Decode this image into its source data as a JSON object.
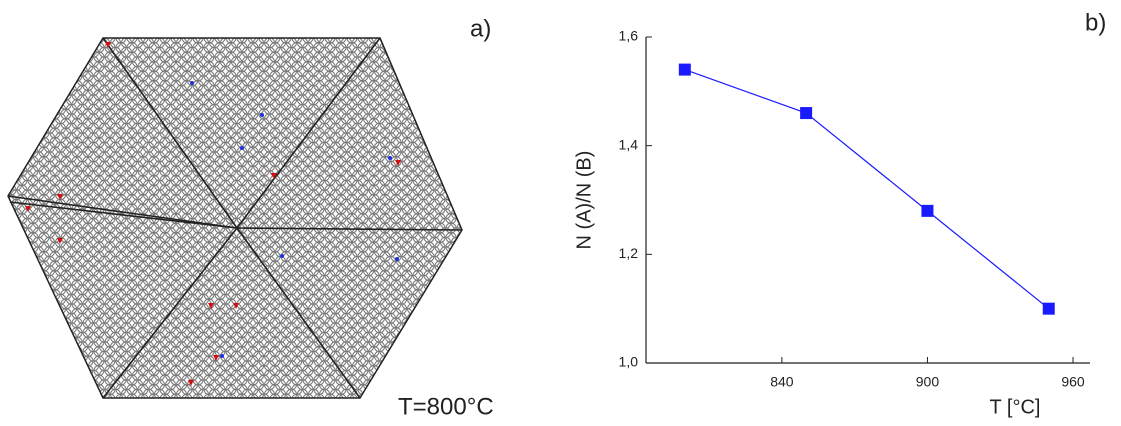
{
  "panel_a": {
    "label": "a)",
    "annotation": "T=800°C"
  },
  "chart_data": {
    "type": "line",
    "panel_label": "b)",
    "x_label": "T [°C]",
    "y_label": "N (A)/N (B)",
    "x": [
      800,
      850,
      900,
      950
    ],
    "series": [
      {
        "values": [
          1.54,
          1.46,
          1.28,
          1.1
        ],
        "color": "#1a1aff"
      }
    ],
    "xlim": [
      784,
      967
    ],
    "xticks": [
      840,
      900,
      960
    ],
    "ylim": [
      1.0,
      1.6
    ],
    "yticks": [
      {
        "value": 1.0,
        "label": "1,0"
      },
      {
        "value": 1.2,
        "label": "1,2"
      },
      {
        "value": 1.4,
        "label": "1,4"
      },
      {
        "value": 1.6,
        "label": "1,6"
      }
    ]
  }
}
